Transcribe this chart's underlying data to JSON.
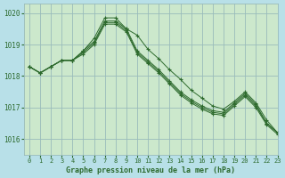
{
  "title": "Graphe pression niveau de la mer (hPa)",
  "bg_color": "#b8e0e8",
  "grid_color": "#99bbbb",
  "line_color": "#2d6a2d",
  "facecolor": "#cce8cc",
  "xlim": [
    -0.5,
    23
  ],
  "ylim": [
    1015.5,
    1020.3
  ],
  "yticks": [
    1016,
    1017,
    1018,
    1019,
    1020
  ],
  "xticks": [
    0,
    1,
    2,
    3,
    4,
    5,
    6,
    7,
    8,
    9,
    10,
    11,
    12,
    13,
    14,
    15,
    16,
    17,
    18,
    19,
    20,
    21,
    22,
    23
  ],
  "series": [
    [
      1018.3,
      1018.1,
      1018.3,
      1018.5,
      1018.5,
      1018.8,
      1019.2,
      1019.85,
      1019.85,
      1019.5,
      1019.3,
      1018.85,
      1018.55,
      1018.2,
      1017.9,
      1017.55,
      1017.3,
      1017.05,
      1016.95,
      1017.2,
      1017.5,
      1017.15,
      1016.6,
      1016.2
    ],
    [
      1018.3,
      1018.1,
      1018.3,
      1018.5,
      1018.5,
      1018.8,
      1019.1,
      1019.75,
      1019.75,
      1019.5,
      1018.8,
      1018.5,
      1018.2,
      1017.85,
      1017.5,
      1017.25,
      1017.05,
      1016.9,
      1016.85,
      1017.15,
      1017.45,
      1017.1,
      1016.5,
      1016.2
    ],
    [
      1018.3,
      1018.1,
      1018.3,
      1018.5,
      1018.5,
      1018.75,
      1019.05,
      1019.7,
      1019.7,
      1019.45,
      1018.75,
      1018.45,
      1018.15,
      1017.8,
      1017.45,
      1017.2,
      1017.0,
      1016.85,
      1016.8,
      1017.1,
      1017.4,
      1017.05,
      1016.5,
      1016.2
    ],
    [
      1018.3,
      1018.1,
      1018.3,
      1018.5,
      1018.5,
      1018.7,
      1019.0,
      1019.65,
      1019.65,
      1019.4,
      1018.7,
      1018.4,
      1018.1,
      1017.75,
      1017.4,
      1017.15,
      1016.95,
      1016.8,
      1016.75,
      1017.05,
      1017.35,
      1017.0,
      1016.45,
      1016.15
    ]
  ]
}
